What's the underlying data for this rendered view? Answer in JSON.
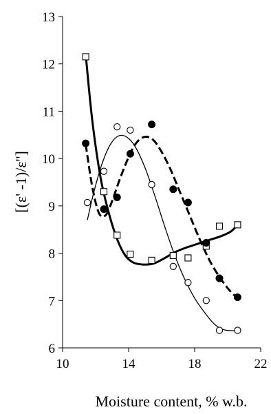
{
  "chart_data": {
    "type": "scatter",
    "title": "",
    "xlabel": "Moisture content, % w.b.",
    "ylabel": "[(ε' -1)/ε'']",
    "xlim": [
      10,
      22
    ],
    "ylim": [
      6,
      13
    ],
    "xticks": [
      "10",
      "14",
      "18",
      "22"
    ],
    "yticks": [
      "6",
      "7",
      "8",
      "9",
      "10",
      "11",
      "12",
      "13"
    ],
    "grid": false,
    "legend": "none",
    "series": [
      {
        "marker": "open-square",
        "line_style": "thick-solid",
        "points": [
          [
            11.4,
            12.15
          ],
          [
            12.5,
            9.3
          ],
          [
            13.3,
            8.38
          ],
          [
            14.1,
            7.98
          ],
          [
            15.4,
            7.85
          ],
          [
            16.7,
            7.95
          ],
          [
            17.6,
            7.9
          ],
          [
            18.7,
            8.15
          ],
          [
            19.5,
            8.57
          ],
          [
            20.6,
            8.6
          ]
        ],
        "fit": [
          [
            11.4,
            12.2
          ],
          [
            11.8,
            10.8
          ],
          [
            12.3,
            9.6
          ],
          [
            12.8,
            8.85
          ],
          [
            13.3,
            8.3
          ],
          [
            13.8,
            7.95
          ],
          [
            14.3,
            7.8
          ],
          [
            14.9,
            7.76
          ],
          [
            15.5,
            7.78
          ],
          [
            16.1,
            7.88
          ],
          [
            16.8,
            8.02
          ],
          [
            17.5,
            8.12
          ],
          [
            18.2,
            8.2
          ],
          [
            18.9,
            8.28
          ],
          [
            19.6,
            8.36
          ],
          [
            20.2,
            8.46
          ],
          [
            20.6,
            8.6
          ]
        ]
      },
      {
        "marker": "open-circle",
        "line_style": "thin-solid",
        "points": [
          [
            11.5,
            9.07
          ],
          [
            12.5,
            9.73
          ],
          [
            13.3,
            10.67
          ],
          [
            14.1,
            10.6
          ],
          [
            15.4,
            9.45
          ],
          [
            16.7,
            7.72
          ],
          [
            17.6,
            7.38
          ],
          [
            18.7,
            7.0
          ],
          [
            19.5,
            6.37
          ],
          [
            20.6,
            6.37
          ]
        ],
        "fit": [
          [
            11.5,
            8.7
          ],
          [
            11.9,
            9.3
          ],
          [
            12.4,
            9.9
          ],
          [
            12.9,
            10.3
          ],
          [
            13.4,
            10.48
          ],
          [
            13.9,
            10.45
          ],
          [
            14.4,
            10.25
          ],
          [
            15.0,
            9.8
          ],
          [
            15.6,
            9.2
          ],
          [
            16.2,
            8.55
          ],
          [
            16.8,
            7.95
          ],
          [
            17.4,
            7.45
          ],
          [
            18.0,
            7.05
          ],
          [
            18.6,
            6.75
          ],
          [
            19.2,
            6.5
          ],
          [
            19.8,
            6.38
          ],
          [
            20.6,
            6.36
          ]
        ]
      },
      {
        "marker": "filled-circle",
        "line_style": "thick-dashed",
        "points": [
          [
            11.4,
            10.32
          ],
          [
            12.5,
            8.93
          ],
          [
            13.3,
            9.18
          ],
          [
            14.1,
            10.1
          ],
          [
            15.4,
            10.72
          ],
          [
            16.7,
            9.35
          ],
          [
            17.6,
            9.07
          ],
          [
            18.7,
            8.22
          ],
          [
            19.5,
            7.47
          ],
          [
            20.6,
            7.07
          ]
        ],
        "fit": [
          [
            11.4,
            10.3
          ],
          [
            11.8,
            9.4
          ],
          [
            12.2,
            8.85
          ],
          [
            12.6,
            8.8
          ],
          [
            13.0,
            9.1
          ],
          [
            13.4,
            9.5
          ],
          [
            13.9,
            9.95
          ],
          [
            14.4,
            10.3
          ],
          [
            14.9,
            10.45
          ],
          [
            15.4,
            10.42
          ],
          [
            15.9,
            10.2
          ],
          [
            16.5,
            9.8
          ],
          [
            17.1,
            9.3
          ],
          [
            17.7,
            8.8
          ],
          [
            18.3,
            8.3
          ],
          [
            18.9,
            7.85
          ],
          [
            19.5,
            7.5
          ],
          [
            20.1,
            7.22
          ],
          [
            20.6,
            7.05
          ]
        ]
      }
    ]
  }
}
